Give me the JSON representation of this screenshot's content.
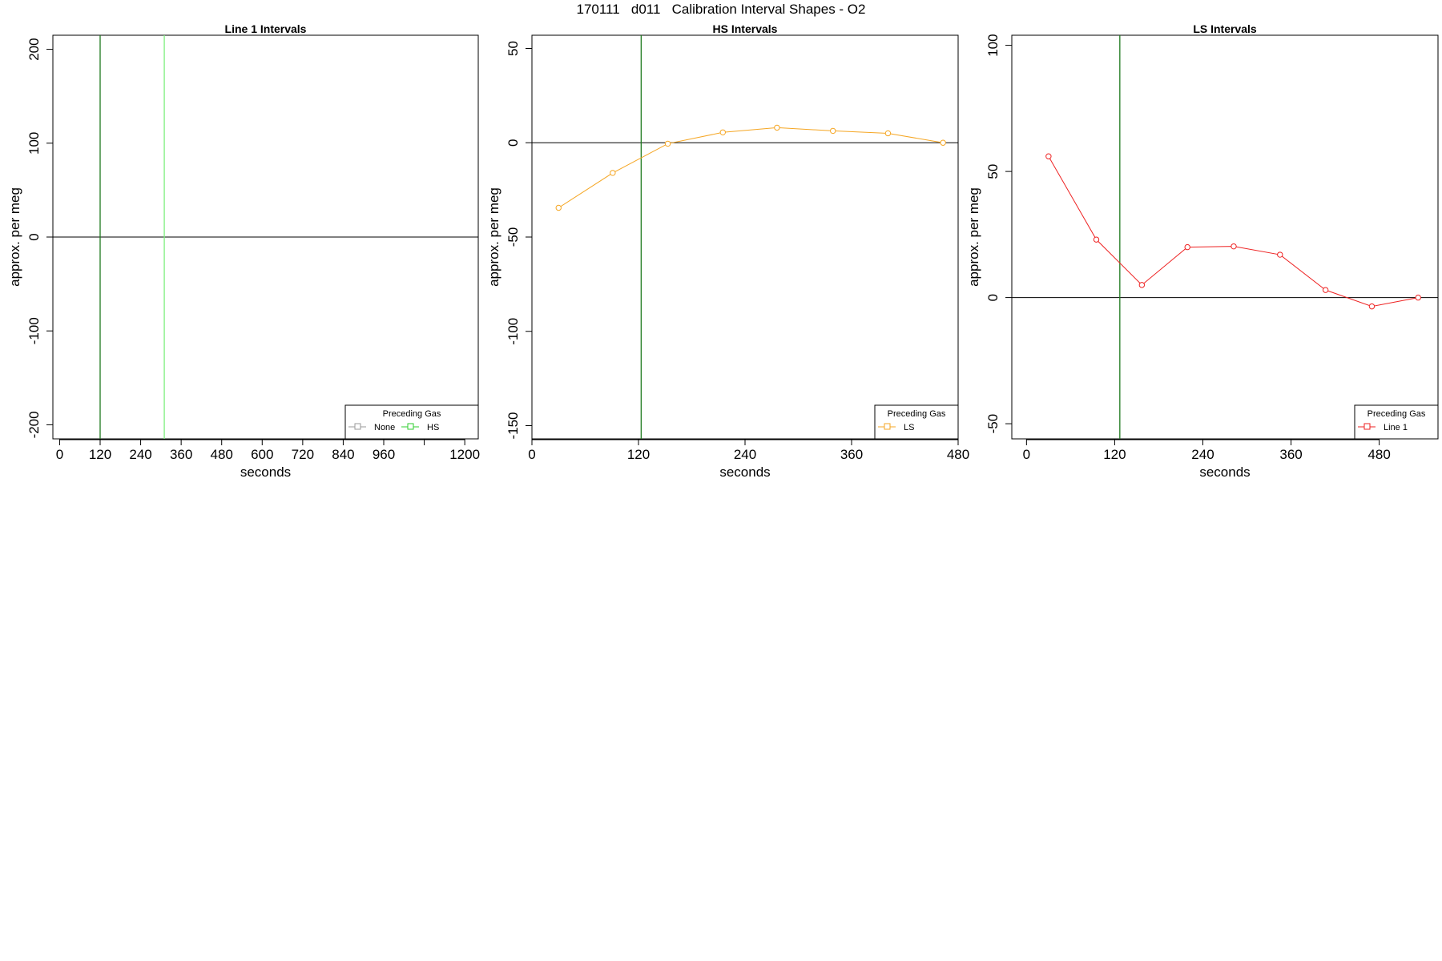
{
  "main_title": "170111   d011   Calibration Interval Shapes - O2",
  "chart_data": [
    {
      "type": "line",
      "title": "Line 1 Intervals",
      "xlabel": "seconds",
      "ylabel": "approx. per meg",
      "xlim": [
        -20,
        1240
      ],
      "ylim": [
        -215,
        215
      ],
      "xticks": [
        0,
        120,
        240,
        360,
        480,
        600,
        720,
        840,
        960,
        1080,
        1200
      ],
      "xtick_labels": [
        "0",
        "120",
        "240",
        "360",
        "480",
        "600",
        "720",
        "840",
        "960",
        "",
        "1200"
      ],
      "yticks": [
        -200,
        -100,
        0,
        100,
        200
      ],
      "ytick_labels": [
        "-200",
        "-100",
        "0",
        "100",
        "200"
      ],
      "hlines": [
        0
      ],
      "vlines": [
        {
          "x": 120,
          "color": "#1e7a1e"
        },
        {
          "x": 310,
          "color": "#7ef07e"
        }
      ],
      "series": [],
      "legend": {
        "title": "Preceding Gas",
        "placement": "bottom-right",
        "entries": [
          {
            "label": "None",
            "color": "#9a9a9a"
          },
          {
            "label": "HS",
            "color": "#2ecc2e"
          }
        ]
      }
    },
    {
      "type": "line",
      "title": "HS Intervals",
      "xlabel": "seconds",
      "ylabel": "approx. per meg",
      "xlim": [
        0,
        480
      ],
      "ylim": [
        -157,
        57
      ],
      "xticks": [
        0,
        120,
        240,
        360,
        480
      ],
      "xtick_labels": [
        "0",
        "120",
        "240",
        "360",
        "480"
      ],
      "yticks": [
        -150,
        -100,
        -50,
        0,
        50
      ],
      "ytick_labels": [
        "-150",
        "-100",
        "-50",
        "0",
        "50"
      ],
      "hlines": [
        0
      ],
      "vlines": [
        {
          "x": 123,
          "color": "#1e7a1e"
        }
      ],
      "series": [
        {
          "color": "#f5a623",
          "x": [
            30,
            91,
            153,
            215,
            276,
            339,
            401,
            463
          ],
          "y": [
            -34.5,
            -16,
            -0.5,
            5.5,
            8,
            6.3,
            5,
            0
          ]
        }
      ],
      "legend": {
        "title": "Preceding Gas",
        "placement": "bottom-right",
        "entries": [
          {
            "label": "LS",
            "color": "#f5a623"
          }
        ]
      }
    },
    {
      "type": "line",
      "title": "LS Intervals",
      "xlabel": "seconds",
      "ylabel": "approx. per meg",
      "xlim": [
        -20,
        560
      ],
      "ylim": [
        -56,
        104
      ],
      "xticks": [
        0,
        120,
        240,
        360,
        480
      ],
      "xtick_labels": [
        "0",
        "120",
        "240",
        "360",
        "480"
      ],
      "yticks": [
        -50,
        0,
        50,
        100
      ],
      "ytick_labels": [
        "-50",
        "0",
        "50",
        "100"
      ],
      "hlines": [
        0
      ],
      "vlines": [
        {
          "x": 127,
          "color": "#1e7a1e"
        }
      ],
      "series": [
        {
          "color": "#ee2222",
          "x": [
            30,
            95,
            157,
            219,
            282,
            345,
            407,
            470,
            533
          ],
          "y": [
            56,
            23,
            5,
            20,
            20.3,
            17,
            3,
            -3.5,
            0
          ]
        }
      ],
      "legend": {
        "title": "Preceding Gas",
        "placement": "bottom-right",
        "entries": [
          {
            "label": "Line 1",
            "color": "#ee2222"
          }
        ]
      }
    }
  ]
}
